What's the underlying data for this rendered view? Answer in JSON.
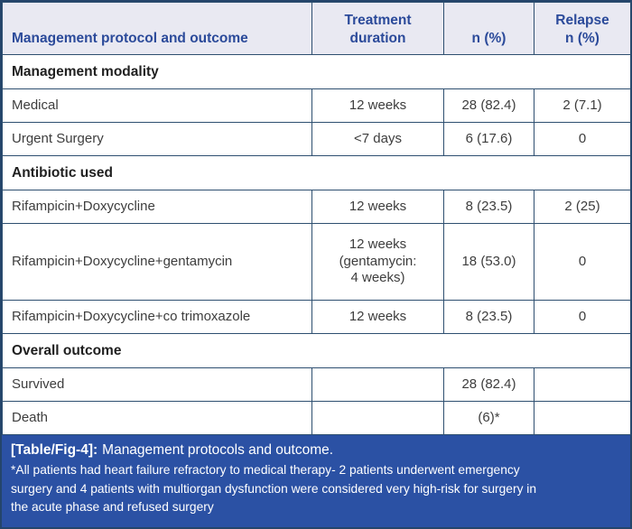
{
  "colors": {
    "outer_border": "#24456b",
    "grid_border": "#2e4f70",
    "header_bg": "#e9e9f2",
    "header_text": "#2b4a9a",
    "body_text": "#3d3d3d",
    "section_text": "#1f1f1f",
    "caption_bar_bg": "#2b51a4",
    "caption_text": "#ffffff"
  },
  "table": {
    "header": {
      "protocol": "Management protocol and outcome",
      "duration": "Treatment\nduration",
      "n_pct": "n (%)",
      "relapse": "Relapse\nn (%)"
    },
    "rows": [
      {
        "type": "section",
        "label": "Management modality"
      },
      {
        "type": "data",
        "cells": [
          "Medical",
          "12 weeks",
          "28 (82.4)",
          "2 (7.1)"
        ]
      },
      {
        "type": "data",
        "cells": [
          "Urgent Surgery",
          "<7 days",
          "6 (17.6)",
          "0"
        ]
      },
      {
        "type": "section",
        "label": "Antibiotic used"
      },
      {
        "type": "data",
        "cells": [
          "Rifampicin+Doxycycline",
          "12 weeks",
          "8 (23.5)",
          "2 (25)"
        ]
      },
      {
        "type": "data",
        "cells": [
          "Rifampicin+Doxycycline+gentamycin",
          "12 weeks\n(gentamycin:\n4 weeks)",
          "18 (53.0)",
          "0"
        ]
      },
      {
        "type": "data",
        "cells": [
          "Rifampicin+Doxycycline+co trimoxazole",
          "12 weeks",
          "8 (23.5)",
          "0"
        ]
      },
      {
        "type": "section",
        "label": "Overall outcome"
      },
      {
        "type": "data",
        "cells": [
          "Survived",
          "",
          "28 (82.4)",
          ""
        ]
      },
      {
        "type": "data",
        "cells": [
          "Death",
          "",
          "(6)*",
          ""
        ]
      }
    ]
  },
  "footer": {
    "caption_label": "[Table/Fig-4]:",
    "caption_text": "Management protocols and outcome.",
    "footnote_lines": [
      "*All patients had heart failure refractory to medical therapy- 2 patients underwent emergency",
      "surgery and 4 patients with multiorgan dysfunction were considered very high-risk for surgery in",
      "the acute phase and refused surgery"
    ]
  }
}
